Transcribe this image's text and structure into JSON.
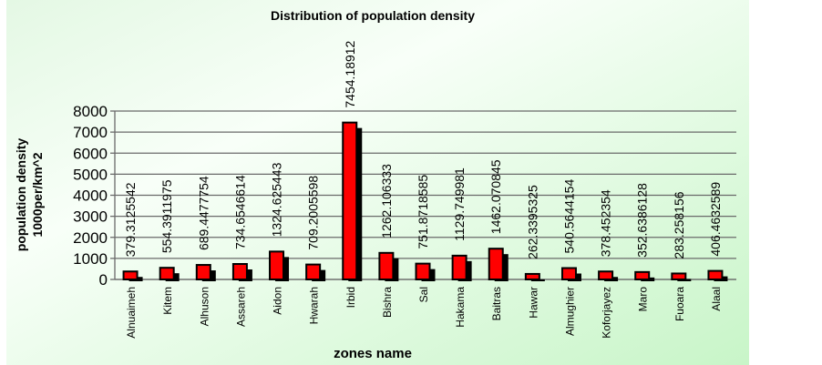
{
  "chart_data": {
    "type": "bar",
    "title": "Distribution of population density",
    "xlabel": "zones name",
    "ylabel": [
      "population density",
      "1000per/km^2"
    ],
    "ylim": [
      0,
      8000
    ],
    "yticks": [
      0,
      1000,
      2000,
      3000,
      4000,
      5000,
      6000,
      7000,
      8000
    ],
    "grid": true,
    "legend": "none",
    "colors": {
      "bar": "#ff0000",
      "bar_outline": "#000000",
      "shadow": "#000000",
      "background_from": "#ffffff",
      "background_to": "#ccf7cc"
    },
    "categories": [
      "Alnuaimeh",
      "Kitem",
      "Alhuson",
      "Assareh",
      "Aidon",
      "Hwarah",
      "Irbid",
      "Bishra",
      "Sal",
      "Hakama",
      "Baitras",
      "Hawar",
      "Almughier",
      "Koforjayez",
      "Maro",
      "Fuoara",
      "Alaal"
    ],
    "values": [
      379.3125542,
      554.3911975,
      689.4477754,
      734.6546614,
      1324.625443,
      709.2005598,
      7454.18912,
      1262.106333,
      751.8718585,
      1129.749981,
      1462.070845,
      262.3395325,
      540.5644154,
      378.452354,
      352.6386128,
      283.258156,
      406.4632589
    ],
    "data_labels": [
      "379.3125542",
      "554.3911975",
      "689.4477754",
      "734.6546614",
      "1324.625443",
      "709.2005598",
      "7454.18912",
      "1262.106333",
      "751.8718585",
      "1129.749981",
      "1462.070845",
      "262.3395325",
      "540.5644154",
      "378.452354",
      "352.6386128",
      "283.258156",
      "406.4632589"
    ]
  }
}
